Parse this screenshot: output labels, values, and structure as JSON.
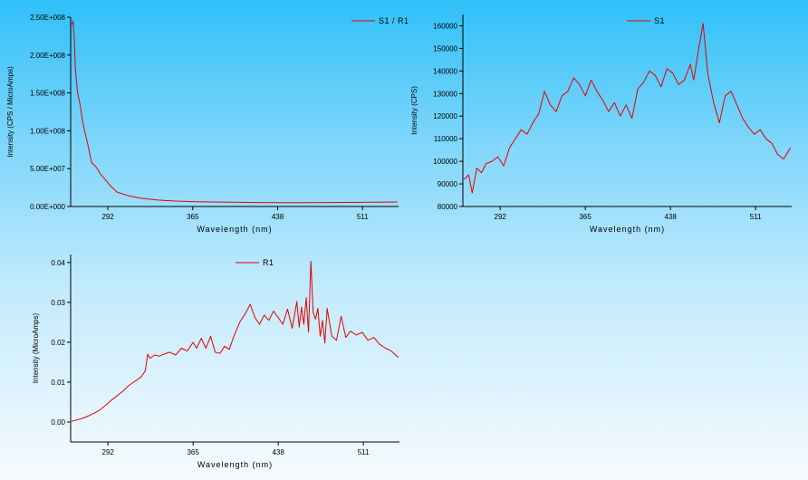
{
  "colors": {
    "series": "#e00000",
    "axis": "#000000"
  },
  "chart_data": [
    {
      "type": "line",
      "xlabel": "Wavelength (nm)",
      "ylabel": "Intensity (CPS / MicroAmps)",
      "xlim": [
        260,
        542
      ],
      "ylim": [
        0,
        250000000
      ],
      "xticks": [
        292,
        365,
        438,
        511
      ],
      "yticks": [
        0,
        50000000,
        100000000,
        150000000,
        200000000,
        250000000
      ],
      "ytick_labels": [
        "0.00E+000",
        "5.00E+007",
        "1.00E+008",
        "1.50E+008",
        "2.00E+008",
        "2.50E+008"
      ],
      "legend": "top-right",
      "series": [
        {
          "name": "S1 / R1",
          "x": [
            261,
            262,
            263,
            264,
            265,
            266,
            268,
            270,
            272,
            275,
            278,
            282,
            286,
            290,
            295,
            300,
            310,
            320,
            335,
            350,
            365,
            380,
            400,
            420,
            440,
            460,
            480,
            500,
            520,
            541
          ],
          "y": [
            240000000,
            245000000,
            225000000,
            185000000,
            165000000,
            150000000,
            135000000,
            115000000,
            100000000,
            80000000,
            58000000,
            52000000,
            42000000,
            35000000,
            26000000,
            19000000,
            14000000,
            11000000,
            8500000,
            7200000,
            6500000,
            6000000,
            5600000,
            5300000,
            5200000,
            5200000,
            5300000,
            5400000,
            5600000,
            6000000
          ]
        }
      ]
    },
    {
      "type": "line",
      "xlabel": "Wavelength (nm)",
      "ylabel": "Intensity (CPS)",
      "xlim": [
        260,
        542
      ],
      "ylim": [
        80000,
        165000
      ],
      "xticks": [
        292,
        365,
        438,
        511
      ],
      "yticks": [
        80000,
        90000,
        100000,
        110000,
        120000,
        130000,
        140000,
        150000,
        160000
      ],
      "ytick_labels": [
        "80000",
        "90000",
        "100000",
        "110000",
        "120000",
        "130000",
        "140000",
        "150000",
        "160000"
      ],
      "legend": "top-center",
      "series": [
        {
          "name": "S1",
          "x": [
            261,
            265,
            268,
            272,
            276,
            280,
            285,
            290,
            295,
            300,
            305,
            310,
            315,
            320,
            325,
            330,
            335,
            340,
            345,
            350,
            355,
            360,
            365,
            370,
            375,
            380,
            385,
            390,
            395,
            400,
            405,
            410,
            415,
            420,
            425,
            430,
            435,
            440,
            445,
            450,
            455,
            458,
            462,
            466,
            470,
            475,
            480,
            485,
            490,
            495,
            500,
            505,
            510,
            515,
            520,
            525,
            530,
            535,
            541
          ],
          "y": [
            92000,
            94000,
            86000,
            97000,
            95000,
            99000,
            100000,
            102000,
            98000,
            106000,
            110000,
            114000,
            112000,
            117000,
            121000,
            131000,
            125000,
            122000,
            129000,
            131000,
            137000,
            134000,
            129000,
            136000,
            131000,
            127000,
            122000,
            126000,
            120000,
            125000,
            119000,
            132000,
            135000,
            140000,
            138000,
            133000,
            141000,
            139000,
            134000,
            136000,
            143000,
            136000,
            149000,
            161000,
            139000,
            126000,
            117000,
            129000,
            131000,
            125000,
            119000,
            115000,
            112000,
            114000,
            110000,
            108000,
            103000,
            101000,
            106000
          ]
        }
      ]
    },
    {
      "type": "line",
      "xlabel": "Wavelength (nm)",
      "ylabel": "Intensity (MicroAmps)",
      "xlim": [
        260,
        542
      ],
      "ylim": [
        -0.005,
        0.042
      ],
      "xticks": [
        292,
        365,
        438,
        511
      ],
      "yticks": [
        0,
        0.01,
        0.02,
        0.03,
        0.04
      ],
      "ytick_labels": [
        "0.00",
        "0.01",
        "0.02",
        "0.03",
        "0.04"
      ],
      "legend": "top-center",
      "series": [
        {
          "name": "R1",
          "x": [
            261,
            265,
            270,
            275,
            280,
            285,
            290,
            295,
            300,
            305,
            310,
            315,
            320,
            324,
            326,
            328,
            332,
            336,
            340,
            345,
            350,
            355,
            360,
            365,
            368,
            372,
            376,
            380,
            384,
            388,
            392,
            396,
            400,
            405,
            410,
            414,
            418,
            422,
            426,
            430,
            434,
            438,
            442,
            446,
            450,
            454,
            456,
            458,
            460,
            462,
            464,
            466,
            468,
            470,
            472,
            474,
            476,
            478,
            480,
            484,
            488,
            492,
            496,
            500,
            505,
            510,
            515,
            520,
            525,
            530,
            535,
            541
          ],
          "y": [
            0.0002,
            0.0005,
            0.0009,
            0.0015,
            0.0022,
            0.003,
            0.0042,
            0.0055,
            0.0066,
            0.0078,
            0.0092,
            0.0102,
            0.0112,
            0.0128,
            0.017,
            0.016,
            0.0168,
            0.0165,
            0.017,
            0.0175,
            0.0168,
            0.0185,
            0.0178,
            0.02,
            0.0185,
            0.021,
            0.0185,
            0.0215,
            0.0175,
            0.0172,
            0.019,
            0.0182,
            0.0215,
            0.025,
            0.0273,
            0.0295,
            0.0262,
            0.0245,
            0.0268,
            0.0255,
            0.0278,
            0.0262,
            0.0245,
            0.0283,
            0.0235,
            0.0302,
            0.0238,
            0.0288,
            0.0245,
            0.0312,
            0.0225,
            0.0403,
            0.0275,
            0.0258,
            0.0285,
            0.0215,
            0.0255,
            0.0198,
            0.0285,
            0.0215,
            0.0205,
            0.0265,
            0.0212,
            0.0228,
            0.0218,
            0.0225,
            0.0205,
            0.0212,
            0.0195,
            0.0185,
            0.0178,
            0.0162
          ]
        }
      ]
    }
  ]
}
